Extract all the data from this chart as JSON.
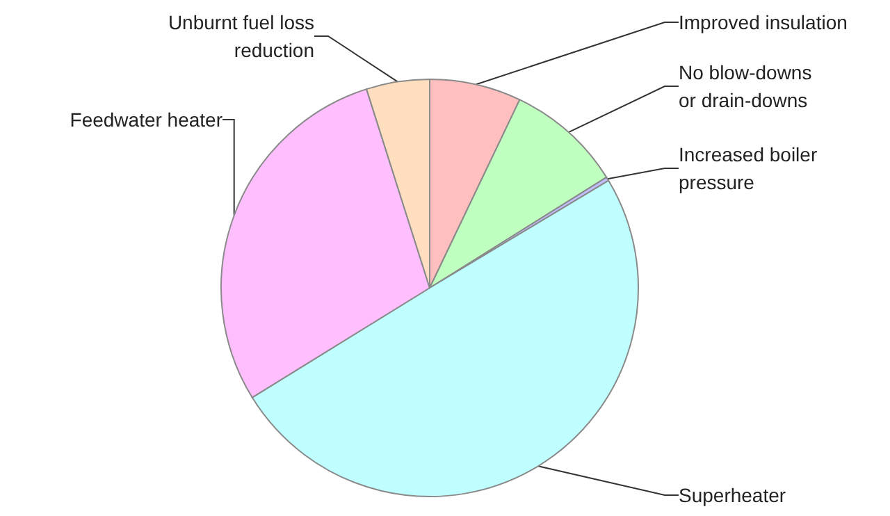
{
  "chart_data": {
    "type": "pie",
    "categories": [
      "Improved insulation",
      "No blow-downs\nor drain-downs",
      "Increased boiler\npressure",
      "Superheater",
      "Feedwater heater",
      "Unburnt fuel loss\nreduction"
    ],
    "values": [
      7.1,
      9.0,
      0.3,
      49.8,
      28.9,
      4.9
    ],
    "colors": [
      "#ffbfbf",
      "#bfffbf",
      "#bfbfff",
      "#bfffff",
      "#ffbfff",
      "#ffdfbf"
    ],
    "legend": false
  }
}
